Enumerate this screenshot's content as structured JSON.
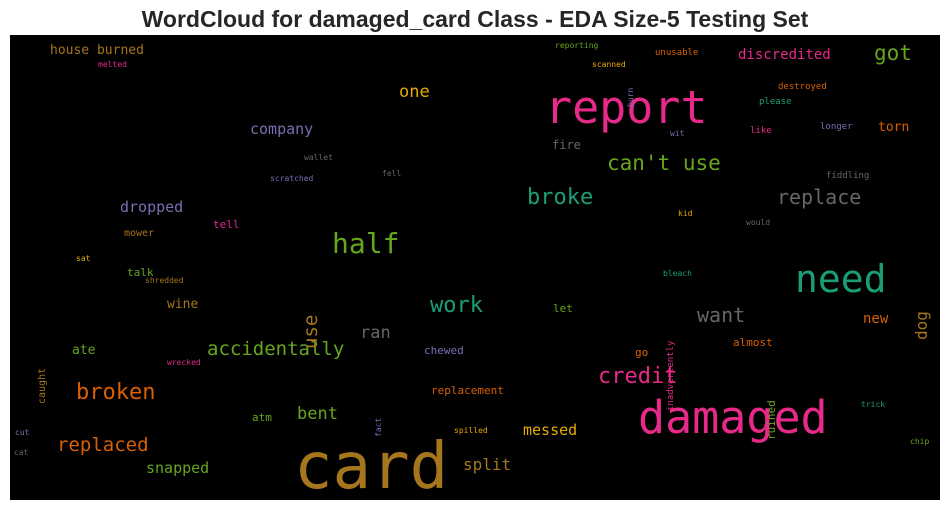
{
  "chart_data": {
    "type": "wordcloud",
    "title": "WordCloud for damaged_card Class - EDA Size-5 Testing Set",
    "background": "#000000",
    "words": [
      {
        "text": "card",
        "size": 64,
        "color": "#a6761d",
        "vertical": false
      },
      {
        "text": "report",
        "size": 45,
        "color": "#e7298a",
        "vertical": false
      },
      {
        "text": "damaged",
        "size": 45,
        "color": "#e7298a",
        "vertical": false
      },
      {
        "text": "need",
        "size": 38,
        "color": "#1b9e77",
        "vertical": false
      },
      {
        "text": "half",
        "size": 28,
        "color": "#66a61e",
        "vertical": false
      },
      {
        "text": "broken",
        "size": 22,
        "color": "#d95f02",
        "vertical": false
      },
      {
        "text": "credit",
        "size": 22,
        "color": "#e7298a",
        "vertical": false
      },
      {
        "text": "work",
        "size": 22,
        "color": "#1b9e77",
        "vertical": false
      },
      {
        "text": "broke",
        "size": 22,
        "color": "#1b9e77",
        "vertical": false
      },
      {
        "text": "can't use",
        "size": 21,
        "color": "#66a61e",
        "vertical": false
      },
      {
        "text": "got",
        "size": 21,
        "color": "#66a61e",
        "vertical": false
      },
      {
        "text": "replace",
        "size": 20,
        "color": "#666666",
        "vertical": false
      },
      {
        "text": "want",
        "size": 20,
        "color": "#666666",
        "vertical": false
      },
      {
        "text": "replaced",
        "size": 19,
        "color": "#d95f02",
        "vertical": false
      },
      {
        "text": "accidentally",
        "size": 19,
        "color": "#66a61e",
        "vertical": false
      },
      {
        "text": "use",
        "size": 19,
        "color": "#a6761d",
        "vertical": true
      },
      {
        "text": "one",
        "size": 17,
        "color": "#e6ab02",
        "vertical": false
      },
      {
        "text": "ran",
        "size": 17,
        "color": "#666666",
        "vertical": false
      },
      {
        "text": "bent",
        "size": 17,
        "color": "#66a61e",
        "vertical": false
      },
      {
        "text": "split",
        "size": 16,
        "color": "#a6761d",
        "vertical": false
      },
      {
        "text": "messed",
        "size": 15,
        "color": "#e6ab02",
        "vertical": false
      },
      {
        "text": "snapped",
        "size": 15,
        "color": "#66a61e",
        "vertical": false
      },
      {
        "text": "dog",
        "size": 16,
        "color": "#a6761d",
        "vertical": true
      },
      {
        "text": "company",
        "size": 15,
        "color": "#7570b3",
        "vertical": false
      },
      {
        "text": "dropped",
        "size": 15,
        "color": "#7570b3",
        "vertical": false
      },
      {
        "text": "discredited",
        "size": 14,
        "color": "#e7298a",
        "vertical": false
      },
      {
        "text": "new",
        "size": 14,
        "color": "#d95f02",
        "vertical": false
      },
      {
        "text": "torn",
        "size": 13,
        "color": "#d95f02",
        "vertical": false
      },
      {
        "text": "house burned",
        "size": 13,
        "color": "#a6761d",
        "vertical": false
      },
      {
        "text": "wine",
        "size": 13,
        "color": "#a6761d",
        "vertical": false
      },
      {
        "text": "ate",
        "size": 13,
        "color": "#66a61e",
        "vertical": false
      },
      {
        "text": "fire",
        "size": 12,
        "color": "#666666",
        "vertical": false
      },
      {
        "text": "chewed",
        "size": 11,
        "color": "#7570b3",
        "vertical": false
      },
      {
        "text": "almost",
        "size": 11,
        "color": "#d95f02",
        "vertical": false
      },
      {
        "text": "replacement",
        "size": 11,
        "color": "#d95f02",
        "vertical": false
      },
      {
        "text": "ruined",
        "size": 11,
        "color": "#66a61e",
        "vertical": true
      },
      {
        "text": "talk",
        "size": 11,
        "color": "#66a61e",
        "vertical": false
      },
      {
        "text": "mower",
        "size": 10,
        "color": "#a6761d",
        "vertical": false
      },
      {
        "text": "tell",
        "size": 11,
        "color": "#e7298a",
        "vertical": false
      },
      {
        "text": "let",
        "size": 11,
        "color": "#66a61e",
        "vertical": false
      },
      {
        "text": "go",
        "size": 11,
        "color": "#d95f02",
        "vertical": false
      },
      {
        "text": "atm",
        "size": 11,
        "color": "#66a61e",
        "vertical": false
      },
      {
        "text": "caught",
        "size": 10,
        "color": "#a6761d",
        "vertical": true
      },
      {
        "text": "inadvertently",
        "size": 9,
        "color": "#e7298a",
        "vertical": true
      },
      {
        "text": "unusable",
        "size": 9,
        "color": "#d95f02",
        "vertical": false
      },
      {
        "text": "destroyed",
        "size": 9,
        "color": "#d95f02",
        "vertical": false
      },
      {
        "text": "please",
        "size": 9,
        "color": "#1b9e77",
        "vertical": false
      },
      {
        "text": "like",
        "size": 9,
        "color": "#e7298a",
        "vertical": false
      },
      {
        "text": "longer",
        "size": 9,
        "color": "#7570b3",
        "vertical": false
      },
      {
        "text": "wit",
        "size": 8,
        "color": "#7570b3",
        "vertical": false
      },
      {
        "text": "reporting",
        "size": 8,
        "color": "#66a61e",
        "vertical": false
      },
      {
        "text": "scanned",
        "size": 8,
        "color": "#e6ab02",
        "vertical": false
      },
      {
        "text": "burn",
        "size": 8,
        "color": "#7570b3",
        "vertical": true
      },
      {
        "text": "fiddling",
        "size": 9,
        "color": "#666666",
        "vertical": false
      },
      {
        "text": "kid",
        "size": 8,
        "color": "#e6ab02",
        "vertical": false
      },
      {
        "text": "would",
        "size": 8,
        "color": "#666666",
        "vertical": false
      },
      {
        "text": "bleach",
        "size": 8,
        "color": "#1b9e77",
        "vertical": false
      },
      {
        "text": "trick",
        "size": 8,
        "color": "#1b9e77",
        "vertical": false
      },
      {
        "text": "chip",
        "size": 8,
        "color": "#66a61e",
        "vertical": false
      },
      {
        "text": "spilled",
        "size": 8,
        "color": "#e6ab02",
        "vertical": false
      },
      {
        "text": "fact",
        "size": 8,
        "color": "#7570b3",
        "vertical": true
      },
      {
        "text": "wrecked",
        "size": 8,
        "color": "#e7298a",
        "vertical": false
      },
      {
        "text": "shredded",
        "size": 8,
        "color": "#a6761d",
        "vertical": false
      },
      {
        "text": "sat",
        "size": 8,
        "color": "#e6ab02",
        "vertical": false
      },
      {
        "text": "cut",
        "size": 8,
        "color": "#7570b3",
        "vertical": false
      },
      {
        "text": "cat",
        "size": 8,
        "color": "#666666",
        "vertical": false
      },
      {
        "text": "melted",
        "size": 8,
        "color": "#e7298a",
        "vertical": false
      },
      {
        "text": "wallet",
        "size": 8,
        "color": "#666666",
        "vertical": false
      },
      {
        "text": "fell",
        "size": 8,
        "color": "#666666",
        "vertical": false
      },
      {
        "text": "scratched",
        "size": 8,
        "color": "#7570b3",
        "vertical": false
      }
    ]
  }
}
